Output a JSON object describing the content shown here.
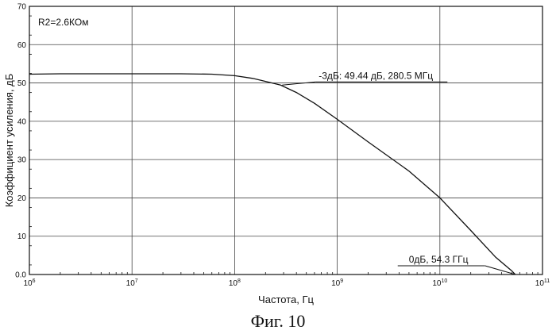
{
  "chart_data": {
    "type": "line",
    "xscale": "log",
    "xlim": [
      1000000,
      100000000000
    ],
    "ylim": [
      0,
      70
    ],
    "xlabel": "Частота, Гц",
    "ylabel": "Коэффициент усиления, дБ",
    "legend": "R2=2.6КОм",
    "caption": "Фиг. 10",
    "grid": true,
    "y_ticks": [
      "0.0",
      "10",
      "20",
      "30",
      "40",
      "50",
      "60",
      "70"
    ],
    "x_ticks": [
      {
        "base": "10",
        "exp": "6"
      },
      {
        "base": "10",
        "exp": "7"
      },
      {
        "base": "10",
        "exp": "8"
      },
      {
        "base": "10",
        "exp": "9"
      },
      {
        "base": "10",
        "exp": "10"
      },
      {
        "base": "10",
        "exp": "11"
      }
    ],
    "series": [
      {
        "x": [
          1000000,
          2000000,
          5000000,
          10000000,
          30000000,
          60000000,
          100000000,
          150000000,
          200000000,
          280500000,
          400000000,
          600000000,
          1000000000,
          2000000000,
          5000000000,
          10000000000,
          20000000000,
          35000000000,
          50000000000,
          54300000000
        ],
        "y": [
          52.3,
          52.4,
          52.4,
          52.4,
          52.4,
          52.3,
          51.9,
          51.2,
          50.4,
          49.44,
          47.5,
          44.7,
          40.5,
          34.6,
          27.0,
          20.0,
          11.5,
          4.5,
          1.0,
          0
        ]
      }
    ],
    "annotations": [
      {
        "text": "-3дБ: 49.44 дБ, 280.5 МГц",
        "x": 280500000,
        "y": 49.44
      },
      {
        "text": "0дБ, 54.3 ГГц",
        "x": 54300000000,
        "y": 0
      }
    ]
  }
}
